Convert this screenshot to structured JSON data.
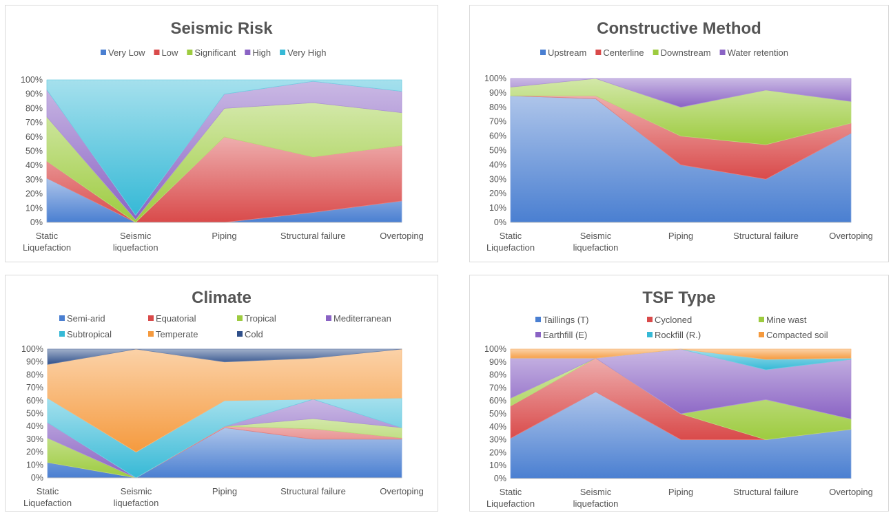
{
  "chart_data": [
    {
      "type": "area",
      "stacking": "percent",
      "title": "Seismic Risk",
      "categories": [
        "Static Liquefaction",
        "Seismic liquefaction",
        "Piping",
        "Structural failure",
        "Overtoping"
      ],
      "yticks": [
        "0%",
        "10%",
        "20%",
        "30%",
        "40%",
        "50%",
        "60%",
        "70%",
        "80%",
        "90%",
        "100%"
      ],
      "ylim": [
        0,
        100
      ],
      "legend": "top",
      "series": [
        {
          "name": "Very Low",
          "color": "#4a7fd1",
          "values": [
            31,
            0,
            0,
            7,
            15
          ]
        },
        {
          "name": "Low",
          "color": "#d94a4a",
          "values": [
            12,
            0,
            60,
            39,
            39
          ]
        },
        {
          "name": "Significant",
          "color": "#9dcb3f",
          "values": [
            31,
            2,
            20,
            38,
            23
          ]
        },
        {
          "name": "High",
          "color": "#8a63c4",
          "values": [
            19,
            3,
            10,
            15,
            15
          ]
        },
        {
          "name": "Very High",
          "color": "#36b9d6",
          "values": [
            7,
            95,
            10,
            1,
            8
          ]
        }
      ]
    },
    {
      "type": "area",
      "stacking": "percent",
      "title": "Constructive Method",
      "categories": [
        "Static Liquefaction",
        "Seismic liquefaction",
        "Piping",
        "Structural failure",
        "Overtoping"
      ],
      "yticks": [
        "0%",
        "10%",
        "20%",
        "30%",
        "40%",
        "50%",
        "60%",
        "70%",
        "80%",
        "90%",
        "100%"
      ],
      "ylim": [
        0,
        100
      ],
      "legend": "top",
      "series": [
        {
          "name": "Upstream",
          "color": "#4a7fd1",
          "values": [
            88,
            86,
            40,
            30,
            62
          ]
        },
        {
          "name": "Centerline",
          "color": "#d94a4a",
          "values": [
            0,
            2,
            20,
            24,
            7
          ]
        },
        {
          "name": "Downstream",
          "color": "#9dcb3f",
          "values": [
            6,
            12,
            20,
            38,
            15
          ]
        },
        {
          "name": "Water retention",
          "color": "#8a63c4",
          "values": [
            6,
            0,
            20,
            8,
            16
          ]
        }
      ]
    },
    {
      "type": "area",
      "stacking": "percent",
      "title": "Climate",
      "categories": [
        "Static Liquefaction",
        "Seismic liquefaction",
        "Piping",
        "Structural failure",
        "Overtoping"
      ],
      "yticks": [
        "0%",
        "10%",
        "20%",
        "30%",
        "40%",
        "50%",
        "60%",
        "70%",
        "80%",
        "90%",
        "100%"
      ],
      "ylim": [
        0,
        100
      ],
      "legend": "top",
      "series": [
        {
          "name": "Semi-arid",
          "color": "#4a7fd1",
          "values": [
            12,
            0,
            39,
            30,
            30
          ]
        },
        {
          "name": "Equatorial",
          "color": "#d94a4a",
          "values": [
            0,
            0,
            1,
            8,
            1
          ]
        },
        {
          "name": "Tropical",
          "color": "#9dcb3f",
          "values": [
            19,
            0,
            0,
            8,
            8
          ]
        },
        {
          "name": "Mediterranean",
          "color": "#8a63c4",
          "values": [
            12,
            0,
            0,
            15,
            0
          ]
        },
        {
          "name": "Subtropical",
          "color": "#36b9d6",
          "values": [
            19,
            20,
            20,
            0,
            23
          ]
        },
        {
          "name": "Temperate",
          "color": "#f59a3e",
          "values": [
            26,
            80,
            30,
            32,
            38
          ]
        },
        {
          "name": "Cold",
          "color": "#2f4f8a",
          "values": [
            12,
            0,
            10,
            7,
            0
          ]
        }
      ]
    },
    {
      "type": "area",
      "stacking": "percent",
      "title": "TSF Type",
      "categories": [
        "Static Liquefaction",
        "Seismic liquefaction",
        "Piping",
        "Structural failure",
        "Overtoping"
      ],
      "yticks": [
        "0%",
        "10%",
        "20%",
        "30%",
        "40%",
        "50%",
        "60%",
        "70%",
        "80%",
        "90%",
        "100%"
      ],
      "ylim": [
        0,
        100
      ],
      "legend": "top",
      "series": [
        {
          "name": "Taillings (T)",
          "color": "#4a7fd1",
          "values": [
            31,
            67,
            30,
            30,
            38
          ]
        },
        {
          "name": "Cycloned",
          "color": "#d94a4a",
          "values": [
            25,
            26,
            20,
            0,
            0
          ]
        },
        {
          "name": "Mine wast",
          "color": "#9dcb3f",
          "values": [
            6,
            0,
            0,
            31,
            8
          ]
        },
        {
          "name": "Earthfill (E)",
          "color": "#8a63c4",
          "values": [
            31,
            0,
            50,
            23,
            46
          ]
        },
        {
          "name": "Rockfill (R.)",
          "color": "#36b9d6",
          "values": [
            0,
            0,
            0,
            8,
            1
          ]
        },
        {
          "name": "Compacted soil",
          "color": "#f59a3e",
          "values": [
            7,
            7,
            0,
            8,
            7
          ]
        }
      ]
    }
  ]
}
